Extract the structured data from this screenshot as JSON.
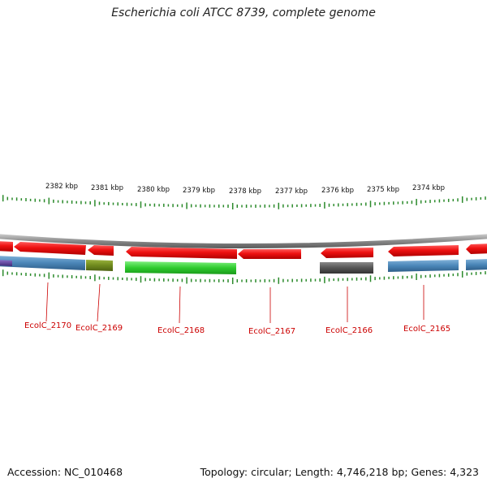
{
  "title": "Escherichia coli ATCC 8739, complete genome",
  "footer": {
    "accession": "Accession: NC_010468",
    "summary": "Topology: circular; Length: 4,746,218 bp; Genes: 4,323"
  },
  "ruler_labels": [
    "2382 kbp",
    "2381 kbp",
    "2380 kbp",
    "2379 kbp",
    "2378 kbp",
    "2377 kbp",
    "2376 kbp",
    "2375 kbp",
    "2374 kbp"
  ],
  "gene_labels": [
    "EcolC_2170",
    "EcolC_2169",
    "EcolC_2168",
    "EcolC_2167",
    "EcolC_2166",
    "EcolC_2165"
  ],
  "colors": {
    "cds": "#e8141a",
    "blue": "#4a86b8",
    "olive": "#6f8a1e",
    "green": "#2ecb2e",
    "gray": "#555555",
    "purple": "#5a3d9a",
    "backbone": "#8a8a8a",
    "tick": "#2b8a2b",
    "label": "#cc0000"
  }
}
